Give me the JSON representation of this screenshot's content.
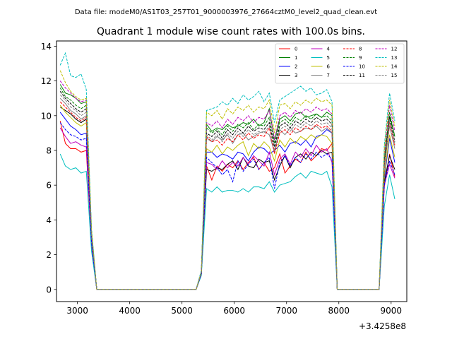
{
  "header": {
    "filename": "Data file: modeM0/AS1T03_257T01_9000003976_27664cztM0_level2_quad_clean.evt"
  },
  "chart_data": {
    "type": "line",
    "title": "Quadrant 1 module wise count rates with 100.0s bins.",
    "xlabel": "",
    "ylabel": "",
    "x_offset_label": "+3.4258e8",
    "xlim": [
      2600,
      9300
    ],
    "ylim": [
      -0.7,
      14.3
    ],
    "xticks": [
      3000,
      4000,
      5000,
      6000,
      7000,
      8000,
      9000
    ],
    "yticks": [
      0,
      2,
      4,
      6,
      8,
      10,
      12,
      14
    ],
    "x": [
      2670,
      2770,
      2870,
      2970,
      3070,
      3170,
      3270,
      3370,
      5270,
      5370,
      5470,
      5570,
      5670,
      5770,
      5870,
      5970,
      6070,
      6170,
      6270,
      6370,
      6470,
      6570,
      6670,
      6770,
      6870,
      6970,
      7070,
      7170,
      7270,
      7370,
      7470,
      7570,
      7670,
      7770,
      7870,
      7970,
      8070,
      8770,
      8870,
      8970,
      9070
    ],
    "series": [
      {
        "name": "0",
        "color": "#ff0000",
        "dash": "solid",
        "values": [
          9.7,
          8.4,
          8.1,
          8.1,
          7.9,
          8.0,
          2.5,
          0,
          0,
          0.9,
          7.1,
          6.3,
          7.1,
          6.8,
          7.2,
          7.0,
          7.4,
          6.9,
          7.3,
          7.6,
          6.9,
          7.3,
          6.8,
          7.0,
          7.8,
          6.7,
          7.1,
          7.5,
          7.3,
          7.9,
          7.4,
          7.7,
          8.1,
          8.0,
          8.4,
          0,
          0,
          0,
          5.9,
          7.8,
          6.5
        ]
      },
      {
        "name": "1",
        "color": "#008000",
        "dash": "solid",
        "values": [
          11.8,
          11.3,
          11.2,
          11.0,
          10.7,
          10.8,
          3.3,
          0,
          0,
          1.0,
          9.5,
          9.1,
          9.3,
          9.2,
          9.5,
          9.3,
          9.4,
          9.6,
          9.5,
          9.8,
          9.4,
          9.6,
          10.4,
          8.6,
          9.8,
          10.0,
          9.7,
          10.1,
          10.2,
          9.9,
          10.0,
          10.1,
          9.9,
          10.2,
          10.0,
          0,
          0,
          0,
          7.4,
          10.0,
          8.8
        ]
      },
      {
        "name": "2",
        "color": "#0000ff",
        "dash": "solid",
        "values": [
          10.2,
          9.8,
          9.4,
          9.2,
          8.9,
          9.0,
          2.8,
          0,
          0,
          1.0,
          7.9,
          7.9,
          7.6,
          7.8,
          7.7,
          7.5,
          7.9,
          7.8,
          7.4,
          7.9,
          8.2,
          8.1,
          7.8,
          8.0,
          8.3,
          7.9,
          8.4,
          8.5,
          8.3,
          8.6,
          8.2,
          8.8,
          8.9,
          9.2,
          9.0,
          0,
          0,
          0,
          6.4,
          8.7,
          7.3
        ]
      },
      {
        "name": "3",
        "color": "#000000",
        "dash": "solid",
        "values": [
          10.5,
          10.3,
          10.1,
          9.8,
          9.6,
          9.8,
          3.0,
          0,
          0,
          0.9,
          6.9,
          6.8,
          7.0,
          6.9,
          7.2,
          7.4,
          6.9,
          7.6,
          7.1,
          7.0,
          7.5,
          7.3,
          7.4,
          6.3,
          7.1,
          7.7,
          7.0,
          7.6,
          7.8,
          7.5,
          7.9,
          7.7,
          8.0,
          7.8,
          7.9,
          0,
          0,
          0,
          6.2,
          7.7,
          6.9
        ]
      },
      {
        "name": "4",
        "color": "#bf00bf",
        "dash": "solid",
        "values": [
          9.3,
          8.8,
          8.4,
          8.5,
          8.3,
          8.2,
          2.6,
          0,
          0,
          0.9,
          7.3,
          7.2,
          6.9,
          7.4,
          7.0,
          7.3,
          7.1,
          7.6,
          7.2,
          7.7,
          7.4,
          7.1,
          7.9,
          6.6,
          7.5,
          7.8,
          7.2,
          7.9,
          7.6,
          8.1,
          7.7,
          8.3,
          7.9,
          8.1,
          7.3,
          0,
          0,
          0,
          6.0,
          7.2,
          6.4
        ]
      },
      {
        "name": "5",
        "color": "#00bfbf",
        "dash": "solid",
        "values": [
          7.8,
          7.1,
          6.9,
          7.0,
          6.7,
          6.8,
          2.2,
          0,
          0,
          0.8,
          5.8,
          5.6,
          5.9,
          5.6,
          5.7,
          5.7,
          5.6,
          5.8,
          5.6,
          5.9,
          5.9,
          5.8,
          6.2,
          5.6,
          6.0,
          6.1,
          6.2,
          6.5,
          6.7,
          6.4,
          6.8,
          6.7,
          6.6,
          6.8,
          5.9,
          0,
          0,
          0,
          4.8,
          6.6,
          5.2
        ]
      },
      {
        "name": "6",
        "color": "#bfbf00",
        "dash": "solid",
        "values": [
          10.6,
          10.2,
          9.9,
          9.6,
          9.4,
          9.6,
          2.9,
          0,
          0,
          0.9,
          8.1,
          7.9,
          8.3,
          7.8,
          8.2,
          8.0,
          8.3,
          8.5,
          7.7,
          8.4,
          8.1,
          8.5,
          8.2,
          7.4,
          8.6,
          8.2,
          8.7,
          8.4,
          8.8,
          8.6,
          8.9,
          8.7,
          8.9,
          8.8,
          8.4,
          0,
          0,
          0,
          6.6,
          8.9,
          7.6
        ]
      },
      {
        "name": "7",
        "color": "#808080",
        "dash": "solid",
        "values": [
          11.0,
          10.7,
          10.3,
          10.1,
          9.8,
          10.0,
          3.1,
          0,
          0,
          1.0,
          8.7,
          8.5,
          8.8,
          8.6,
          8.9,
          8.4,
          8.9,
          9.0,
          8.6,
          8.8,
          9.0,
          9.1,
          8.9,
          7.9,
          9.2,
          8.9,
          9.3,
          9.0,
          9.1,
          9.3,
          9.2,
          9.4,
          9.1,
          9.3,
          9.0,
          0,
          0,
          0,
          7.0,
          9.4,
          8.1
        ]
      },
      {
        "name": "8",
        "color": "#ff0000",
        "dash": "dashed",
        "values": [
          10.8,
          10.5,
          10.2,
          9.9,
          9.7,
          9.9,
          3.0,
          0,
          0,
          0.9,
          8.8,
          8.5,
          8.6,
          8.3,
          8.7,
          8.5,
          8.9,
          8.6,
          9.0,
          8.7,
          8.9,
          8.8,
          9.3,
          7.8,
          9.0,
          9.2,
          8.9,
          9.3,
          9.1,
          9.4,
          9.2,
          9.5,
          9.3,
          9.4,
          9.1,
          0,
          0,
          0,
          7.1,
          9.6,
          8.3
        ]
      },
      {
        "name": "9",
        "color": "#008000",
        "dash": "dashed",
        "values": [
          11.6,
          11.1,
          10.9,
          10.6,
          10.4,
          10.6,
          3.2,
          0,
          0,
          1.0,
          9.3,
          9.0,
          9.2,
          8.9,
          9.4,
          9.1,
          9.5,
          9.3,
          9.6,
          9.2,
          9.5,
          9.4,
          9.9,
          8.4,
          9.6,
          9.8,
          9.5,
          9.9,
          9.7,
          10.0,
          9.8,
          10.1,
          9.9,
          10.0,
          9.7,
          0,
          0,
          0,
          7.5,
          10.2,
          8.8
        ]
      },
      {
        "name": "10",
        "color": "#0000ff",
        "dash": "dashed",
        "values": [
          9.6,
          9.2,
          8.9,
          8.8,
          8.6,
          8.7,
          2.7,
          0,
          0,
          0.9,
          7.6,
          7.3,
          7.0,
          6.6,
          6.9,
          6.2,
          7.4,
          6.8,
          7.2,
          7.5,
          6.9,
          7.3,
          7.6,
          5.8,
          7.3,
          7.7,
          7.1,
          7.6,
          7.3,
          7.8,
          7.5,
          7.9,
          7.6,
          7.8,
          7.5,
          0,
          0,
          0,
          6.0,
          7.4,
          6.6
        ]
      },
      {
        "name": "11",
        "color": "#000000",
        "dash": "dashed",
        "values": [
          11.4,
          11.0,
          10.7,
          10.4,
          10.2,
          10.4,
          3.2,
          0,
          0,
          1.0,
          9.0,
          8.8,
          9.1,
          8.7,
          9.2,
          8.9,
          9.3,
          9.0,
          9.4,
          9.1,
          9.3,
          9.2,
          9.6,
          8.2,
          9.4,
          9.6,
          9.3,
          9.7,
          9.5,
          9.8,
          9.6,
          9.9,
          9.7,
          9.8,
          9.5,
          0,
          0,
          0,
          7.2,
          9.9,
          8.5
        ]
      },
      {
        "name": "12",
        "color": "#bf00bf",
        "dash": "dashed",
        "values": [
          12.0,
          11.6,
          11.3,
          11.0,
          10.8,
          10.9,
          3.3,
          0,
          0,
          1.0,
          9.6,
          9.4,
          9.7,
          9.3,
          9.8,
          9.5,
          9.9,
          9.7,
          10.0,
          9.6,
          9.9,
          9.8,
          10.3,
          8.6,
          10.0,
          10.2,
          9.9,
          10.3,
          10.1,
          10.4,
          10.2,
          10.5,
          10.3,
          10.4,
          10.1,
          0,
          0,
          0,
          7.8,
          10.6,
          9.1
        ]
      },
      {
        "name": "13",
        "color": "#00bfbf",
        "dash": "dashed",
        "values": [
          12.9,
          13.6,
          12.3,
          12.2,
          12.4,
          11.5,
          3.5,
          0,
          0,
          1.1,
          10.3,
          10.4,
          10.5,
          10.8,
          10.6,
          11.0,
          10.7,
          11.2,
          10.9,
          11.1,
          11.4,
          10.8,
          11.3,
          9.6,
          10.9,
          11.1,
          11.3,
          11.5,
          11.7,
          11.4,
          11.6,
          11.2,
          11.3,
          11.5,
          10.8,
          0,
          0,
          0,
          8.3,
          11.3,
          9.7
        ]
      },
      {
        "name": "14",
        "color": "#bfbf00",
        "dash": "dashed",
        "values": [
          12.6,
          11.9,
          11.4,
          11.1,
          10.9,
          11.0,
          3.4,
          0,
          0,
          1.0,
          10.2,
          10.0,
          10.3,
          9.8,
          10.4,
          10.1,
          10.5,
          10.3,
          10.6,
          10.2,
          10.5,
          10.4,
          10.9,
          9.0,
          10.6,
          10.7,
          10.4,
          10.8,
          10.6,
          10.9,
          10.7,
          11.0,
          10.8,
          10.9,
          10.6,
          0,
          0,
          0,
          8.1,
          10.9,
          9.4
        ]
      },
      {
        "name": "15",
        "color": "#808080",
        "dash": "dashed",
        "values": [
          11.2,
          10.9,
          10.5,
          10.3,
          10.0,
          10.2,
          3.1,
          0,
          0,
          1.0,
          8.9,
          8.6,
          8.9,
          8.5,
          9.0,
          8.7,
          9.1,
          8.8,
          9.2,
          8.9,
          9.1,
          9.0,
          9.4,
          8.0,
          9.2,
          9.4,
          9.1,
          9.5,
          9.3,
          9.6,
          9.4,
          9.7,
          9.5,
          9.6,
          9.3,
          0,
          0,
          0,
          7.1,
          9.7,
          8.4
        ]
      }
    ],
    "legend_position": "top-right",
    "legend_columns": 4
  }
}
